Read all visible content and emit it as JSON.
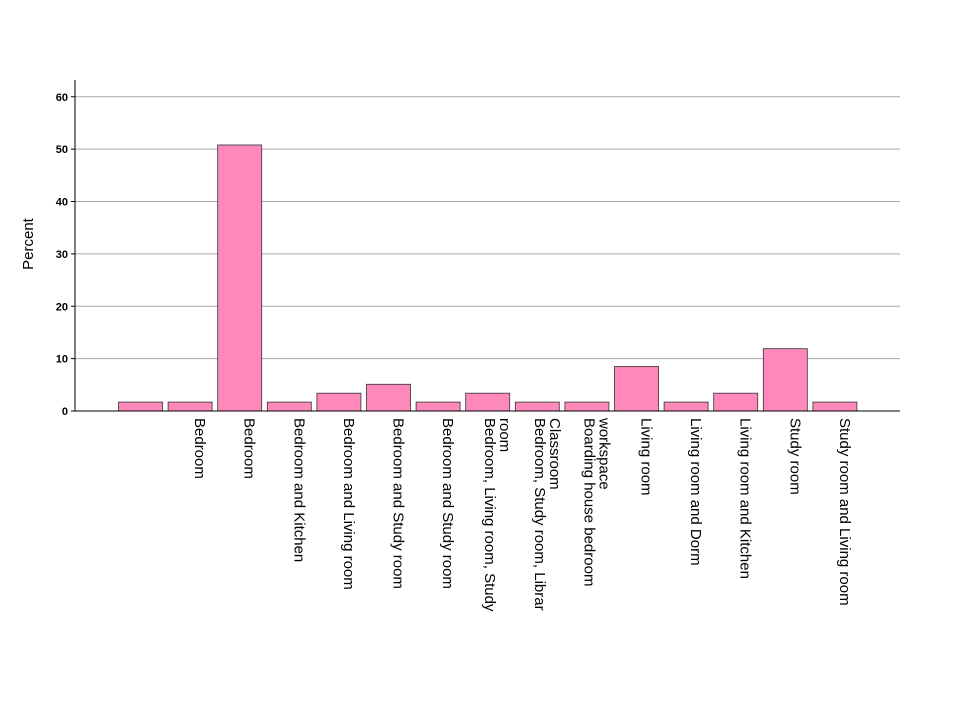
{
  "chart_data": {
    "type": "bar",
    "ylabel": "Percent",
    "ylim": [
      0,
      63
    ],
    "yticks": [
      0,
      10,
      20,
      30,
      40,
      50,
      60
    ],
    "grid": true,
    "bar_color": "#ff88bb",
    "bar_stroke": "#333333",
    "categories": [
      "",
      "Bedroom",
      "Bedroom",
      "Bedroom and Kitchen",
      "Bedroom and Living room",
      "Bedroom and Study room",
      "Bedroom and Study room",
      [
        "Bedroom, Living room, Study",
        "room"
      ],
      [
        "Bedroom, Study room, Librar",
        "Classroom"
      ],
      [
        "Boarding house bedroom",
        "workspace"
      ],
      "Living room",
      "Living room and Dorm",
      "Living room and Kitchen",
      "Study room",
      "Study room and Living room"
    ],
    "values": [
      1.7,
      1.7,
      50.8,
      1.7,
      3.4,
      5.1,
      1.7,
      3.4,
      1.7,
      1.7,
      8.5,
      1.7,
      3.4,
      11.9,
      1.7
    ]
  }
}
